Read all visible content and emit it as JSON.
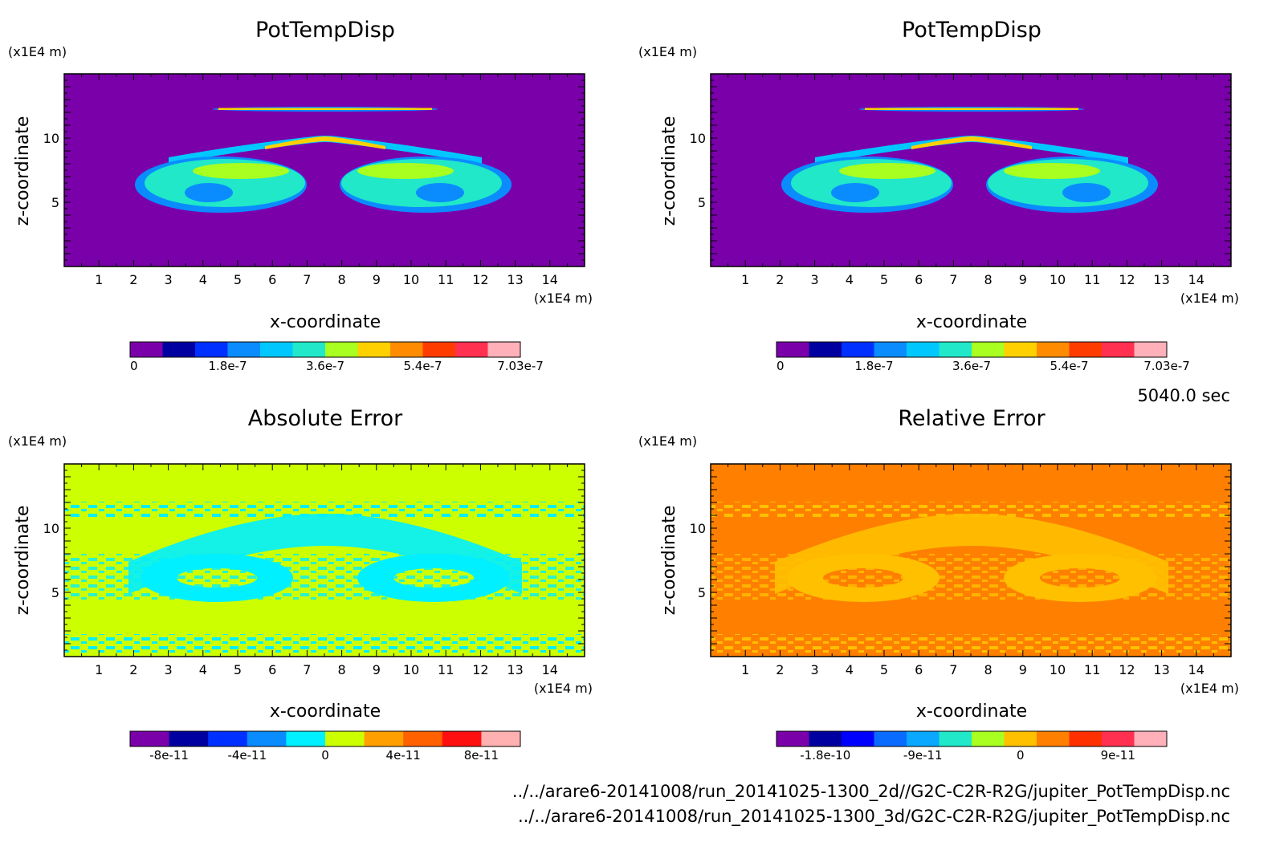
{
  "time_label": "5040.0 sec",
  "footer_lines": [
    "../../arare6-20141008/run_20141025-1300_2d//G2C-C2R-R2G/jupiter_PotTempDisp.nc",
    "../../arare6-20141008/run_20141025-1300_3d/G2C-C2R-R2G/jupiter_PotTempDisp.nc"
  ],
  "chart_data": [
    {
      "type": "heatmap",
      "title": "PotTempDisp",
      "xlabel": "x-coordinate",
      "ylabel": "z-coordinate",
      "x_unit": "(x1E4 m)",
      "y_unit": "(x1E4 m)",
      "xlim": [
        0,
        15
      ],
      "ylim": [
        0,
        15
      ],
      "x_ticks": [
        "1",
        "2",
        "3",
        "4",
        "5",
        "6",
        "7",
        "8",
        "9",
        "10",
        "11",
        "12",
        "13",
        "14"
      ],
      "y_ticks": [
        "5",
        "10"
      ],
      "colorbar": {
        "labels": [
          "0",
          "1.8e-7",
          "3.6e-7",
          "5.4e-7",
          "7.03e-7"
        ],
        "colors": [
          "#7a00aa",
          "#0000a0",
          "#0030ff",
          "#0a8cff",
          "#00c8ff",
          "#20e8c8",
          "#a8ff20",
          "#ffd000",
          "#ff8c00",
          "#ff3c00",
          "#ff3050",
          "#ffb0b8"
        ]
      },
      "background": "#7a00aa"
    },
    {
      "type": "heatmap",
      "title": "PotTempDisp",
      "xlabel": "x-coordinate",
      "ylabel": "z-coordinate",
      "x_unit": "(x1E4 m)",
      "y_unit": "(x1E4 m)",
      "xlim": [
        0,
        15
      ],
      "ylim": [
        0,
        15
      ],
      "x_ticks": [
        "1",
        "2",
        "3",
        "4",
        "5",
        "6",
        "7",
        "8",
        "9",
        "10",
        "11",
        "12",
        "13",
        "14"
      ],
      "y_ticks": [
        "5",
        "10"
      ],
      "colorbar": {
        "labels": [
          "0",
          "1.8e-7",
          "3.6e-7",
          "5.4e-7",
          "7.03e-7"
        ],
        "colors": [
          "#7a00aa",
          "#0000a0",
          "#0030ff",
          "#0a8cff",
          "#00c8ff",
          "#20e8c8",
          "#a8ff20",
          "#ffd000",
          "#ff8c00",
          "#ff3c00",
          "#ff3050",
          "#ffb0b8"
        ]
      },
      "background": "#7a00aa"
    },
    {
      "type": "heatmap",
      "title": "Absolute Error",
      "xlabel": "x-coordinate",
      "ylabel": "z-coordinate",
      "x_unit": "(x1E4 m)",
      "y_unit": "(x1E4 m)",
      "xlim": [
        0,
        15
      ],
      "ylim": [
        0,
        15
      ],
      "x_ticks": [
        "1",
        "2",
        "3",
        "4",
        "5",
        "6",
        "7",
        "8",
        "9",
        "10",
        "11",
        "12",
        "13",
        "14"
      ],
      "y_ticks": [
        "5",
        "10"
      ],
      "colorbar": {
        "labels": [
          "-8e-11",
          "-4e-11",
          "0",
          "4e-11",
          "8e-11"
        ],
        "colors": [
          "#7a00aa",
          "#0000a0",
          "#0030ff",
          "#0a8cff",
          "#00f0ff",
          "#ccff00",
          "#ffa000",
          "#ff6000",
          "#ff1010",
          "#ffb0b0"
        ]
      },
      "background": "#ccff00",
      "pattern": "#00f0ff"
    },
    {
      "type": "heatmap",
      "title": "Relative Error",
      "xlabel": "x-coordinate",
      "ylabel": "z-coordinate",
      "x_unit": "(x1E4 m)",
      "y_unit": "(x1E4 m)",
      "xlim": [
        0,
        15
      ],
      "ylim": [
        0,
        15
      ],
      "x_ticks": [
        "1",
        "2",
        "3",
        "4",
        "5",
        "6",
        "7",
        "8",
        "9",
        "10",
        "11",
        "12",
        "13",
        "14"
      ],
      "y_ticks": [
        "5",
        "10"
      ],
      "colorbar": {
        "labels": [
          "-1.8e-10",
          "-9e-11",
          "0",
          "9e-11"
        ],
        "colors": [
          "#7a00aa",
          "#0000a0",
          "#0000ff",
          "#0a6cff",
          "#0aa8ff",
          "#20e8c8",
          "#a8ff20",
          "#ffc000",
          "#ff8000",
          "#ff3000",
          "#ff3050",
          "#ffb0b8"
        ]
      },
      "background": "#ff8000",
      "pattern": "#ffc000"
    }
  ]
}
